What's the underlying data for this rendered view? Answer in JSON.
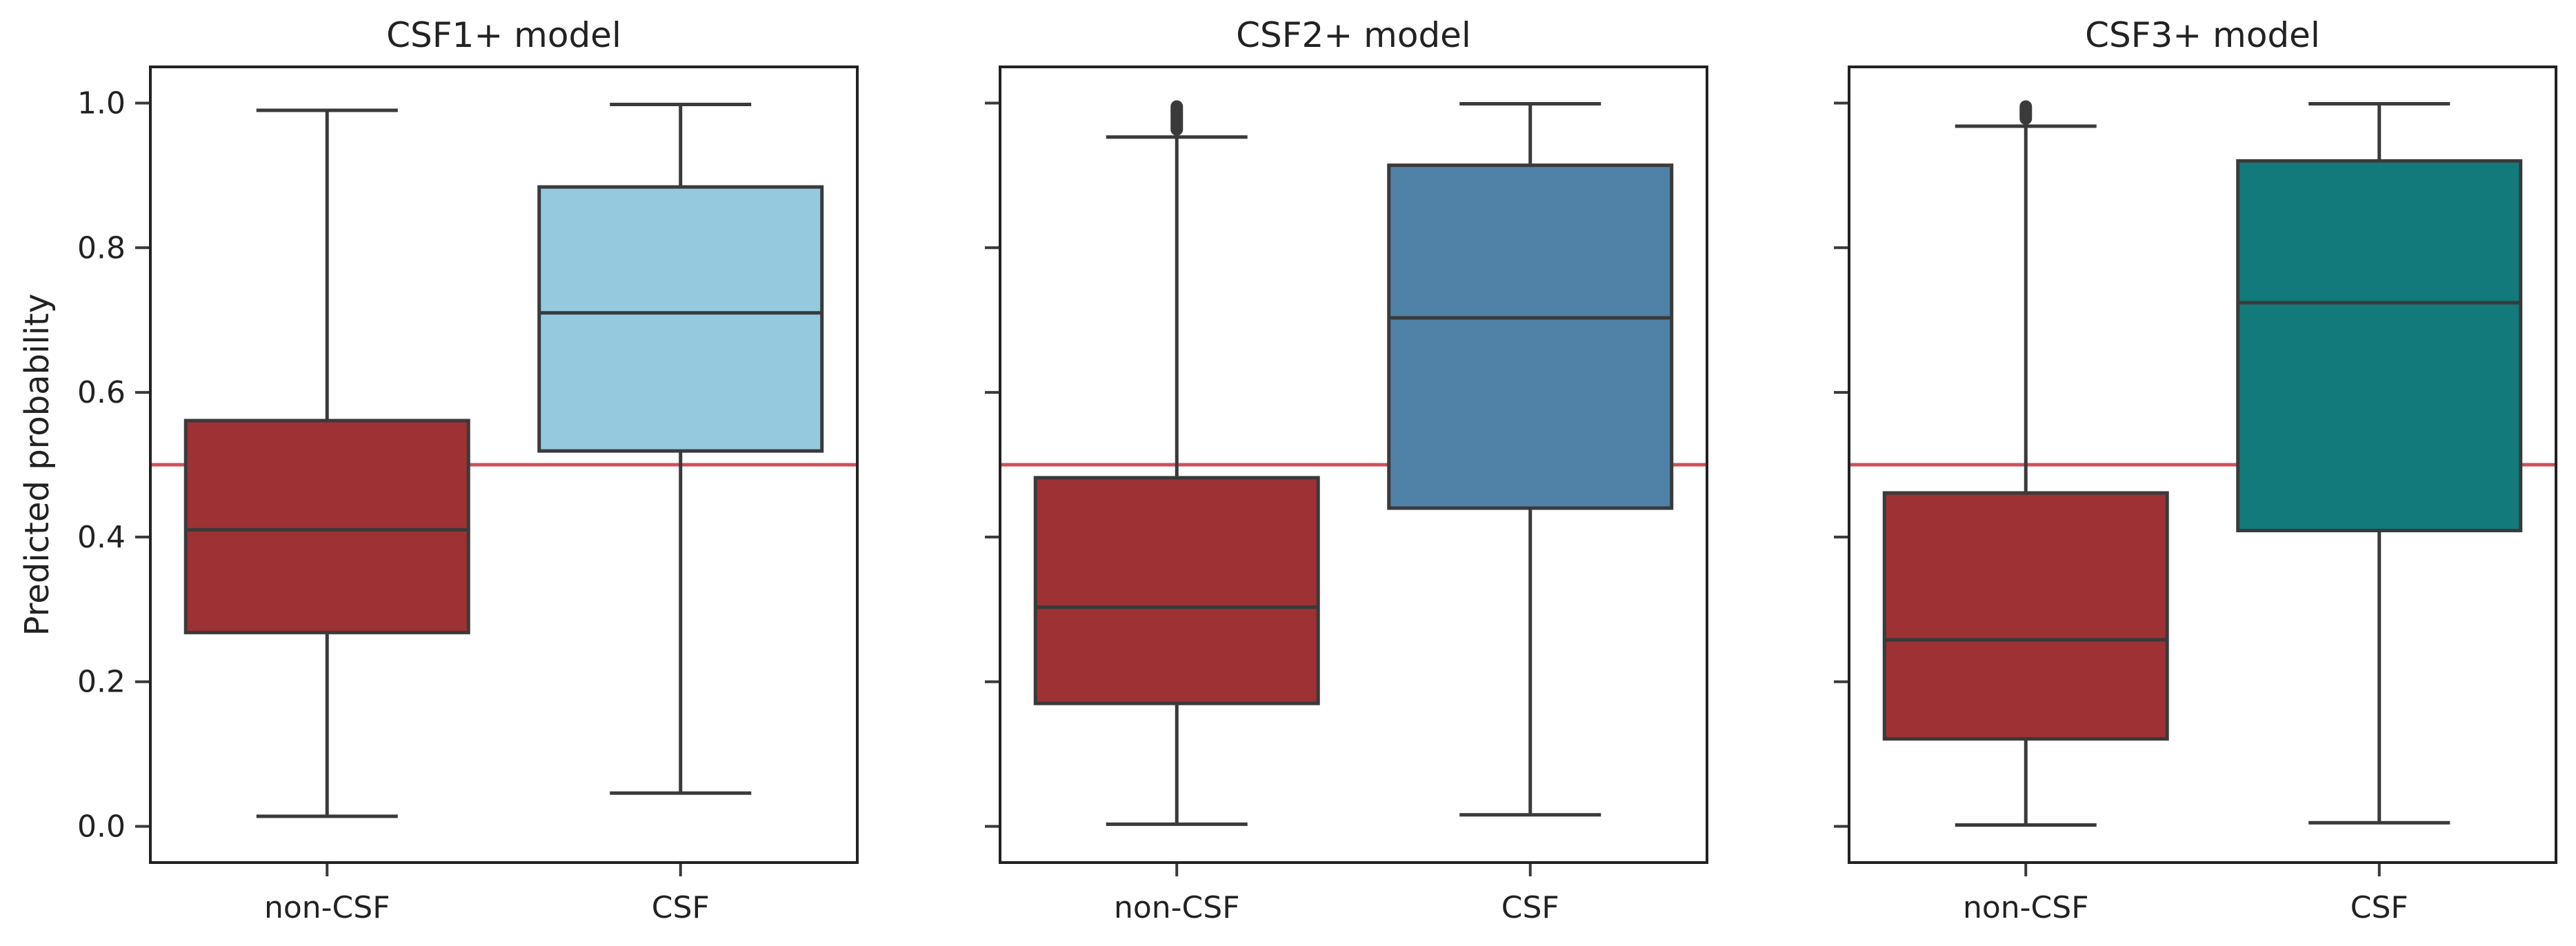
{
  "chart_data": [
    {
      "type": "box",
      "title": "CSF1+ model",
      "xlabel": "",
      "ylabel": "Predicted probability",
      "ylim": [
        -0.05,
        1.05
      ],
      "yticks": [
        "0.0",
        "0.2",
        "0.4",
        "0.6",
        "0.8",
        "1.0"
      ],
      "categories": [
        "non-CSF",
        "CSF"
      ],
      "reference_line": {
        "y": 0.5,
        "color": "#d0505a"
      },
      "boxes": [
        {
          "category": "non-CSF",
          "whisker_low": 0.014,
          "q1": 0.268,
          "median": 0.41,
          "q3": 0.561,
          "whisker_high": 0.99,
          "fliers_top": false,
          "color": "#9e3133"
        },
        {
          "category": "CSF",
          "whisker_low": 0.046,
          "q1": 0.519,
          "median": 0.71,
          "q3": 0.884,
          "whisker_high": 0.998,
          "fliers_top": false,
          "color": "#94c9de"
        }
      ]
    },
    {
      "type": "box",
      "title": "CSF2+ model",
      "xlabel": "",
      "ylabel": "",
      "ylim": [
        -0.05,
        1.05
      ],
      "yticks": [
        "0.0",
        "0.2",
        "0.4",
        "0.6",
        "0.8",
        "1.0"
      ],
      "categories": [
        "non-CSF",
        "CSF"
      ],
      "reference_line": {
        "y": 0.5,
        "color": "#d0505a"
      },
      "boxes": [
        {
          "category": "non-CSF",
          "whisker_low": 0.003,
          "q1": 0.17,
          "median": 0.303,
          "q3": 0.482,
          "whisker_high": 0.953,
          "fliers_top": true,
          "color": "#9e3133"
        },
        {
          "category": "CSF",
          "whisker_low": 0.016,
          "q1": 0.44,
          "median": 0.703,
          "q3": 0.914,
          "whisker_high": 0.999,
          "fliers_top": false,
          "color": "#5081a6"
        }
      ]
    },
    {
      "type": "box",
      "title": "CSF3+ model",
      "xlabel": "",
      "ylabel": "",
      "ylim": [
        -0.05,
        1.05
      ],
      "yticks": [
        "0.0",
        "0.2",
        "0.4",
        "0.6",
        "0.8",
        "1.0"
      ],
      "categories": [
        "non-CSF",
        "CSF"
      ],
      "reference_line": {
        "y": 0.5,
        "color": "#d0505a"
      },
      "boxes": [
        {
          "category": "non-CSF",
          "whisker_low": 0.002,
          "q1": 0.121,
          "median": 0.258,
          "q3": 0.461,
          "whisker_high": 0.968,
          "fliers_top": true,
          "color": "#9e3133"
        },
        {
          "category": "CSF",
          "whisker_low": 0.005,
          "q1": 0.409,
          "median": 0.724,
          "q3": 0.92,
          "whisker_high": 0.999,
          "fliers_top": false,
          "color": "#127a7a"
        }
      ]
    }
  ]
}
